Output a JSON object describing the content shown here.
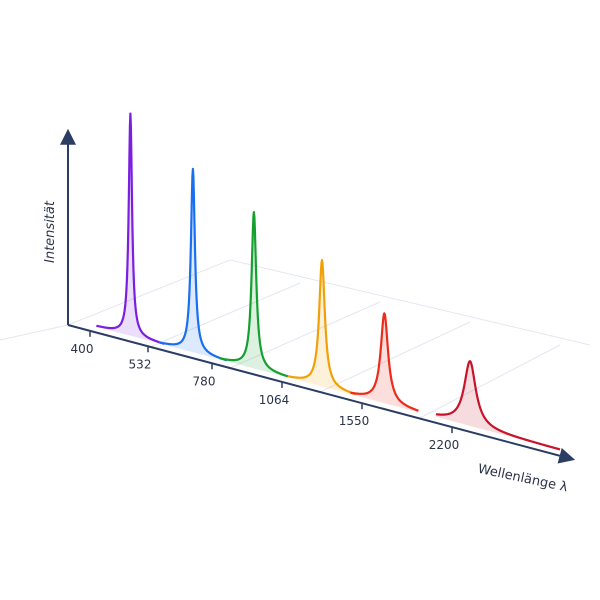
{
  "chart_data": {
    "type": "spectrum",
    "x_label": "Wellenlänge λ",
    "y_label": "Intensität",
    "xticks": [
      400,
      532,
      780,
      1064,
      1550,
      2200
    ],
    "ylim": [
      0,
      200
    ],
    "peaks": [
      {
        "x": 492,
        "intensity": 230,
        "color": "#7a1fe0"
      },
      {
        "x": 706,
        "intensity": 190,
        "color": "#1a6ff0"
      },
      {
        "x": 950,
        "intensity": 162,
        "color": "#16a030"
      },
      {
        "x": 1307,
        "intensity": 131,
        "color": "#f2a007"
      },
      {
        "x": 1712,
        "intensity": 93,
        "color": "#ee2a1a"
      },
      {
        "x": 2330,
        "intensity": 67,
        "color": "#c8142a"
      }
    ]
  }
}
